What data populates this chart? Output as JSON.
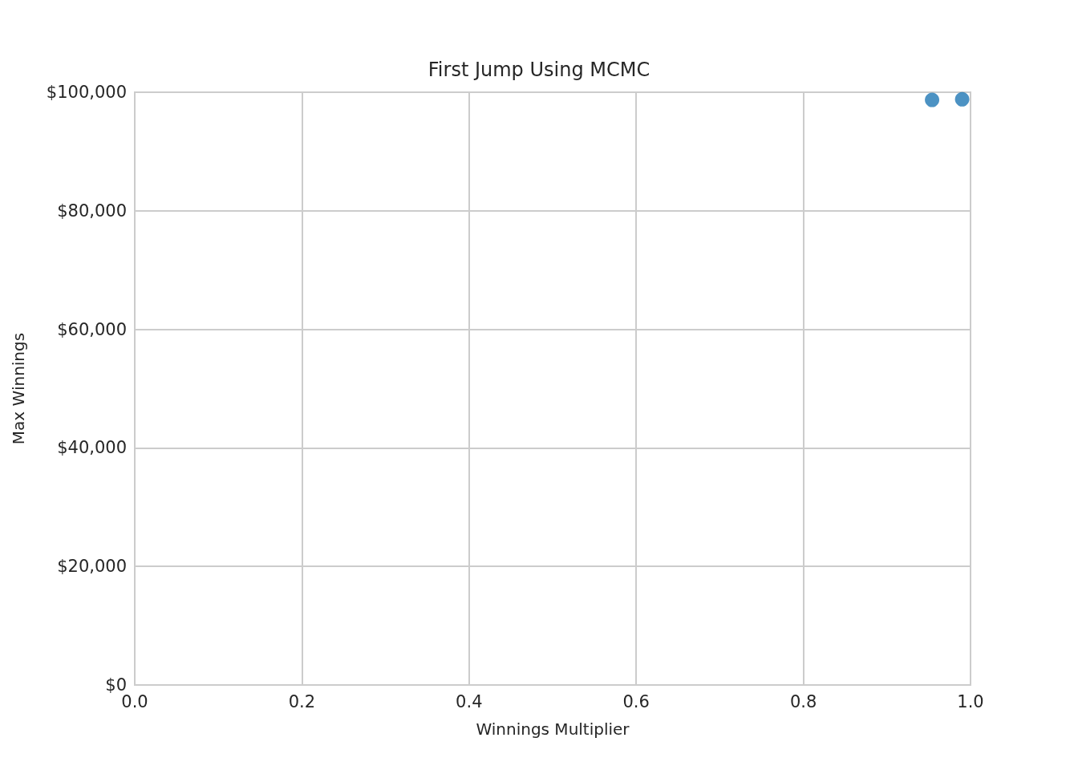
{
  "chart_data": {
    "type": "scatter",
    "title": "First Jump Using MCMC",
    "xlabel": "Winnings Multiplier",
    "ylabel": "Max Winnings",
    "x": [
      0.954,
      0.99
    ],
    "values": [
      98700,
      98800
    ],
    "color": "#1f77b4",
    "marker": "circle",
    "grid": true,
    "xlim": [
      0,
      1
    ],
    "xticks": [
      {
        "value": 0,
        "label": "0.0"
      },
      {
        "value": 0.2,
        "label": "0.2"
      },
      {
        "value": 0.4,
        "label": "0.4"
      },
      {
        "value": 0.6,
        "label": "0.6"
      },
      {
        "value": 0.8,
        "label": "0.8"
      },
      {
        "value": 1,
        "label": "1.0"
      }
    ],
    "ylim": [
      0,
      100000
    ],
    "yticks": [
      {
        "value": 0,
        "label": "$0"
      },
      {
        "value": 20000,
        "label": "$20,000"
      },
      {
        "value": 40000,
        "label": "$40,000"
      },
      {
        "value": 60000,
        "label": "$60,000"
      },
      {
        "value": 80000,
        "label": "$80,000"
      },
      {
        "value": 100000,
        "label": "$100,000"
      }
    ]
  }
}
